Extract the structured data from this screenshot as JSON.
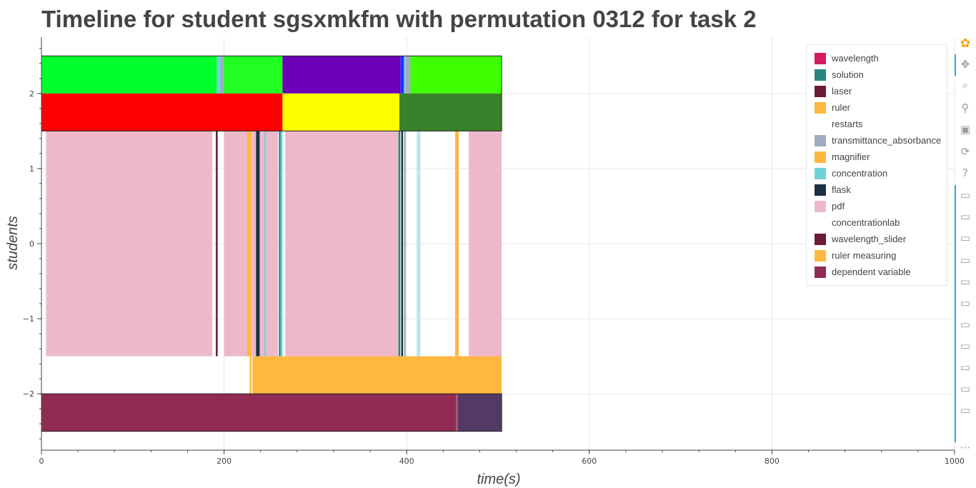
{
  "title": "Timeline for student sgsxmkfm with permutation 0312 for task 2",
  "chart_data": {
    "type": "timeline",
    "title": "Timeline for student sgsxmkfm with permutation 0312 for task 2",
    "xlabel": "time(s)",
    "ylabel": "students",
    "xlim": [
      0,
      1000
    ],
    "ylim": [
      -2.75,
      2.75
    ],
    "x_ticks": [
      0,
      200,
      400,
      600,
      800,
      1000
    ],
    "y_ticks": [
      2,
      1,
      0,
      -1,
      -2
    ],
    "y_tick_labels": [
      "2",
      "1",
      "0",
      "−1",
      "−2"
    ],
    "grid": true,
    "legend_position": "top-right",
    "legend": [
      {
        "name": "wavelength",
        "color": "#d81b60"
      },
      {
        "name": "solution",
        "color": "#26867f"
      },
      {
        "name": "laser",
        "color": "#6d1a36"
      },
      {
        "name": "ruler",
        "color": "#ffb83f"
      },
      {
        "name": "restarts",
        "color": "#ffffff"
      },
      {
        "name": "transmittance_absorbance",
        "color": "#9eadc0"
      },
      {
        "name": "magnifier",
        "color": "#ffb83f"
      },
      {
        "name": "concentration",
        "color": "#6fd2db"
      },
      {
        "name": "flask",
        "color": "#1c3144"
      },
      {
        "name": "pdf",
        "color": "#eeb8cb"
      },
      {
        "name": "concentrationlab",
        "color": "#ffffff"
      },
      {
        "name": "wavelength_slider",
        "color": "#6d1a36"
      },
      {
        "name": "ruler measuring",
        "color": "#ffb83f"
      },
      {
        "name": "dependent variable",
        "color": "#902b53"
      }
    ],
    "bars": [
      {
        "y0": 2.0,
        "y1": 2.5,
        "x0": 0,
        "x1": 192,
        "color": "#00ff2b"
      },
      {
        "y0": 2.0,
        "y1": 2.5,
        "x0": 192,
        "x1": 196,
        "color": "#6fd2db"
      },
      {
        "y0": 2.0,
        "y1": 2.5,
        "x0": 196,
        "x1": 199,
        "color": "#9eadc0"
      },
      {
        "y0": 2.0,
        "y1": 2.5,
        "x0": 199,
        "x1": 264,
        "color": "#22ff22"
      },
      {
        "y0": 2.0,
        "y1": 2.5,
        "x0": 264,
        "x1": 393,
        "color": "#6b00b8"
      },
      {
        "y0": 2.0,
        "y1": 2.5,
        "x0": 393,
        "x1": 397,
        "color": "#2d2dff"
      },
      {
        "y0": 2.0,
        "y1": 2.5,
        "x0": 397,
        "x1": 399,
        "color": "#6fd2db"
      },
      {
        "y0": 2.0,
        "y1": 2.5,
        "x0": 399,
        "x1": 404,
        "color": "#9eadc0"
      },
      {
        "y0": 2.0,
        "y1": 2.5,
        "x0": 404,
        "x1": 504,
        "color": "#3dff00"
      },
      {
        "y0": 1.5,
        "y1": 2.0,
        "x0": 0,
        "x1": 264,
        "color": "#ff0000"
      },
      {
        "y0": 1.5,
        "y1": 2.0,
        "x0": 264,
        "x1": 392,
        "color": "#ffff00"
      },
      {
        "y0": 1.5,
        "y1": 2.0,
        "x0": 392,
        "x1": 504,
        "color": "#38812a"
      },
      {
        "y0": -1.5,
        "y1": 1.5,
        "x0": 5,
        "x1": 187,
        "color": "#eeb8cb"
      },
      {
        "y0": -1.5,
        "y1": 1.5,
        "x0": 191,
        "x1": 193,
        "color": "#6d1a36"
      },
      {
        "y0": -1.5,
        "y1": 1.5,
        "x0": 200,
        "x1": 225,
        "color": "#eeb8cb"
      },
      {
        "y0": -1.5,
        "y1": 1.5,
        "x0": 225,
        "x1": 230,
        "color": "#ffb83f"
      },
      {
        "y0": -1.5,
        "y1": 1.5,
        "x0": 230,
        "x1": 235,
        "color": "#eeb8cb"
      },
      {
        "y0": -1.5,
        "y1": 1.5,
        "x0": 235,
        "x1": 239,
        "color": "#1c3144"
      },
      {
        "y0": -1.5,
        "y1": 1.5,
        "x0": 239,
        "x1": 244,
        "color": "#eeb8cb"
      },
      {
        "y0": -1.5,
        "y1": 1.5,
        "x0": 244,
        "x1": 246,
        "color": "#6fd2db"
      },
      {
        "y0": -1.5,
        "y1": 1.5,
        "x0": 246,
        "x1": 250,
        "color": "#eeb8cb"
      },
      {
        "y0": -1.5,
        "y1": 1.5,
        "x0": 250,
        "x1": 259,
        "color": "#eeb8cb"
      },
      {
        "y0": -1.5,
        "y1": 1.5,
        "x0": 260,
        "x1": 262,
        "color": "#26867f"
      },
      {
        "y0": -1.5,
        "y1": 1.5,
        "x0": 262,
        "x1": 264,
        "color": "#6fd2db"
      },
      {
        "y0": -1.5,
        "y1": 1.5,
        "x0": 267,
        "x1": 391,
        "color": "#eeb8cb"
      },
      {
        "y0": -1.5,
        "y1": 1.5,
        "x0": 391,
        "x1": 393,
        "color": "#26867f"
      },
      {
        "y0": -1.5,
        "y1": 1.5,
        "x0": 394,
        "x1": 396,
        "color": "#1c3144"
      },
      {
        "y0": -1.5,
        "y1": 1.5,
        "x0": 397,
        "x1": 399,
        "color": "#9eadc0"
      },
      {
        "y0": -1.5,
        "y1": 1.5,
        "x0": 411,
        "x1": 415,
        "color": "#b7e5ec"
      },
      {
        "y0": -1.5,
        "y1": 1.5,
        "x0": 453,
        "x1": 457,
        "color": "#ffb83f"
      },
      {
        "y0": -1.5,
        "y1": 1.5,
        "x0": 468,
        "x1": 504,
        "color": "#eeb8cb"
      },
      {
        "y0": -2.0,
        "y1": -1.5,
        "x0": 228,
        "x1": 230,
        "color": "#ffb83f"
      },
      {
        "y0": -2.0,
        "y1": -1.5,
        "x0": 231,
        "x1": 504,
        "color": "#ffb83f"
      },
      {
        "y0": -2.5,
        "y1": -2.0,
        "x0": 0,
        "x1": 454,
        "color": "#902b53"
      },
      {
        "y0": -2.5,
        "y1": -2.0,
        "x0": 454,
        "x1": 456,
        "color": "#a34c72"
      },
      {
        "y0": -2.5,
        "y1": -2.0,
        "x0": 456,
        "x1": 504,
        "color": "#523a64"
      }
    ],
    "outlines": [
      {
        "y0": 1.5,
        "y1": 2.5,
        "x0": 0,
        "x1": 504
      },
      {
        "y0": -2.5,
        "y1": -2.0,
        "x0": 0,
        "x1": 504
      }
    ]
  },
  "toolbar": {
    "tools": [
      {
        "name": "bokeh-logo-icon",
        "glyph": "✿"
      },
      {
        "name": "pan-icon",
        "glyph": "✥"
      },
      {
        "name": "box-zoom-icon",
        "glyph": "⌕"
      },
      {
        "name": "wheel-zoom-icon",
        "glyph": "⚲"
      },
      {
        "name": "save-icon",
        "glyph": "▣"
      },
      {
        "name": "reset-icon",
        "glyph": "⟳"
      },
      {
        "name": "help-icon",
        "glyph": "?"
      },
      {
        "name": "hover-icon",
        "glyph": "▭"
      },
      {
        "name": "hover-icon",
        "glyph": "▭"
      },
      {
        "name": "hover-icon",
        "glyph": "▭"
      },
      {
        "name": "hover-icon",
        "glyph": "▭"
      },
      {
        "name": "hover-icon",
        "glyph": "▭"
      },
      {
        "name": "hover-icon",
        "glyph": "▭"
      },
      {
        "name": "hover-icon",
        "glyph": "▭"
      },
      {
        "name": "hover-icon",
        "glyph": "▭"
      },
      {
        "name": "hover-icon",
        "glyph": "▭"
      },
      {
        "name": "hover-icon",
        "glyph": "▭"
      },
      {
        "name": "hover-icon",
        "glyph": "▭"
      },
      {
        "name": "more-icon",
        "glyph": "⋯"
      }
    ],
    "accent": "#26aae1"
  }
}
